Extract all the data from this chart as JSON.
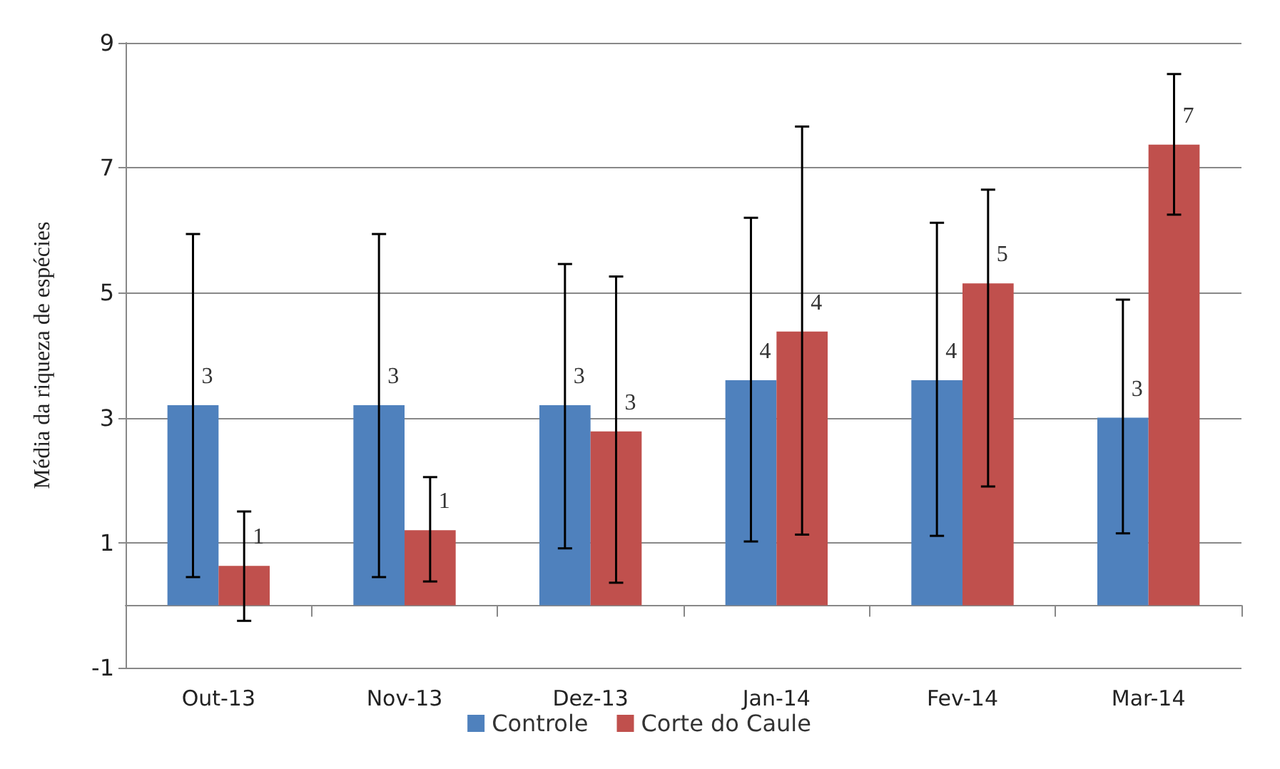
{
  "chart_data": {
    "type": "bar",
    "ylabel": "Média da riqueza de espécies",
    "categories": [
      "Out-13",
      "Nov-13",
      "Dez-13",
      "Jan-14",
      "Fev-14",
      "Mar-14"
    ],
    "series": [
      {
        "name": "Controle",
        "color": "#4f81bd",
        "values": [
          3.2,
          3.2,
          3.2,
          3.6,
          3.6,
          3.0
        ],
        "errors": [
          [
            0.45,
            5.94
          ],
          [
            0.45,
            5.94
          ],
          [
            0.91,
            5.46
          ],
          [
            1.02,
            6.2
          ],
          [
            1.11,
            6.12
          ],
          [
            1.15,
            4.89
          ]
        ],
        "value_labels": [
          "3",
          "3",
          "3",
          "4",
          "4",
          "3"
        ]
      },
      {
        "name": "Corte do Caule",
        "color": "#c0504d",
        "values": [
          0.63,
          1.2,
          2.78,
          4.38,
          5.15,
          7.37
        ],
        "errors": [
          [
            -0.25,
            1.5
          ],
          [
            0.38,
            2.05
          ],
          [
            0.36,
            5.26
          ],
          [
            1.13,
            7.66
          ],
          [
            1.9,
            6.65
          ],
          [
            6.25,
            8.5
          ]
        ],
        "value_labels": [
          "1",
          "1",
          "3",
          "4",
          "5",
          "7"
        ]
      }
    ],
    "ylim": [
      -1,
      9
    ],
    "yticks": [
      -1,
      1,
      3,
      5,
      7,
      9
    ],
    "grid": "y",
    "legend": "bottom"
  }
}
